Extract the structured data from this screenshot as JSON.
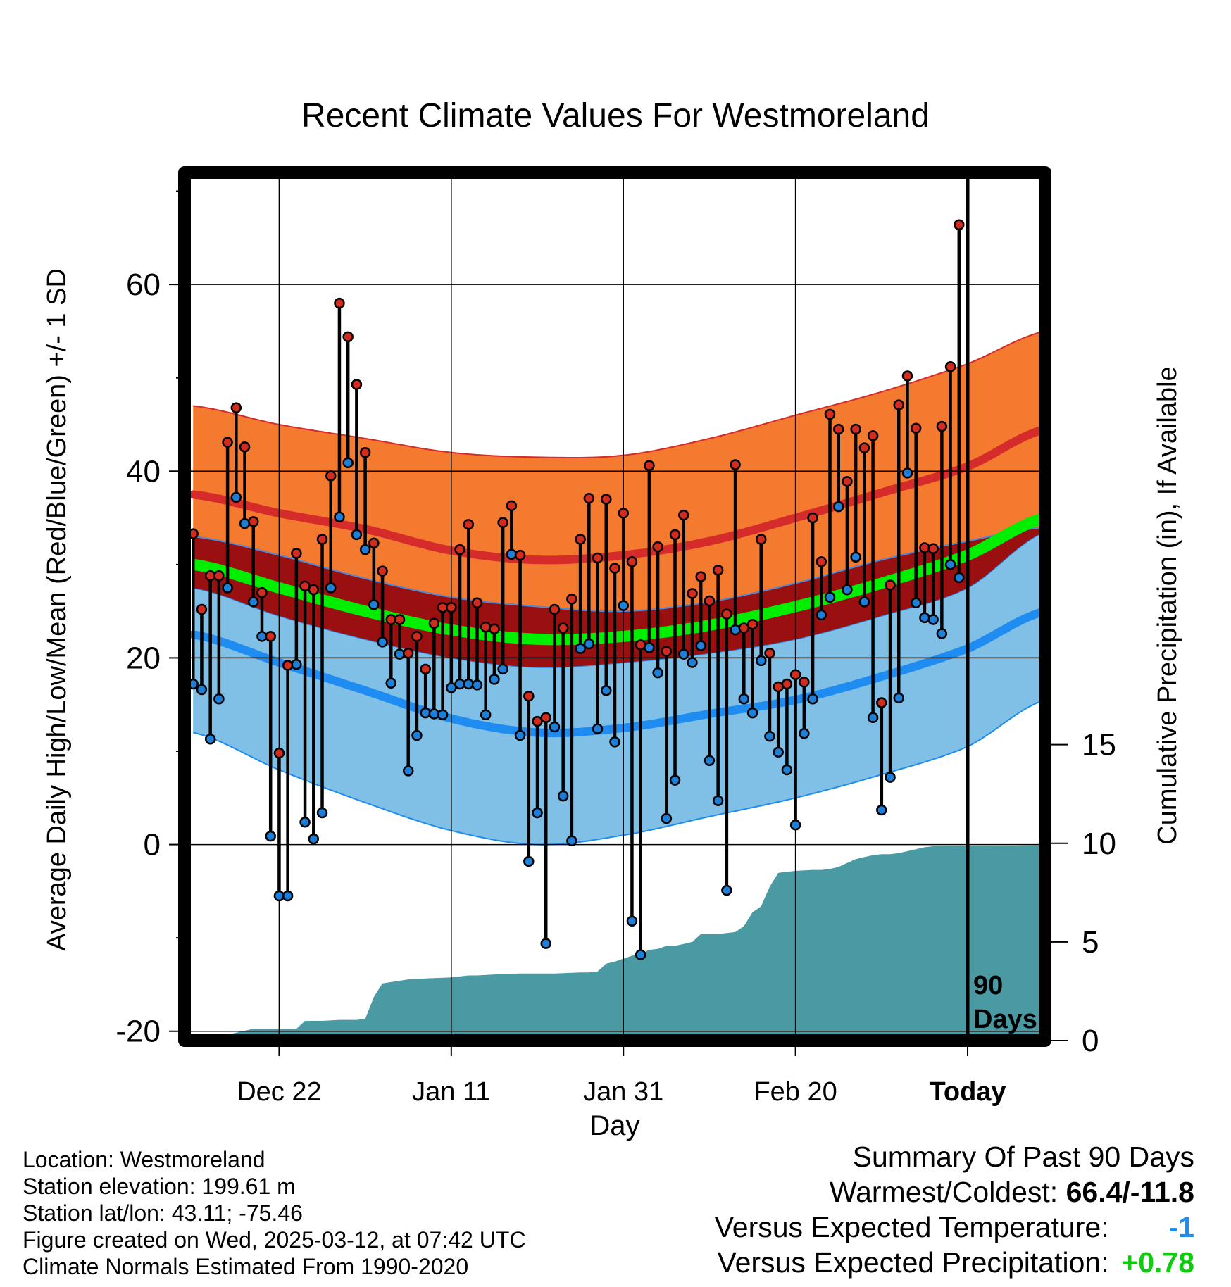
{
  "colors": {
    "high_band": "#f47a30",
    "high_line": "#d52b2b",
    "low_band": "#80c0e6",
    "low_line": "#1e8cf0",
    "mean_band": "#9a1010",
    "mean_line": "#00ee00",
    "precip_fill": "#4a9aa3",
    "high_dot": "#d42b1f",
    "low_dot": "#1e7fd8",
    "temp_anomaly": "#1e8cf0",
    "precip_anomaly": "#10cc10"
  },
  "chart_data": {
    "type": "line",
    "title": "Recent Climate Values For Westmoreland",
    "xlabel": "Day",
    "ylabel": "Average Daily High/Low/Mean (Red/Blue/Green) +/- 1 SD",
    "ylabel_right": "Cumulative Precipitation (in), If Available",
    "x_ticks": [
      "Dec 22",
      "Jan 11",
      "Jan 31",
      "Feb 20",
      "Today"
    ],
    "x_tick_days": [
      10,
      30,
      50,
      70,
      90
    ],
    "x_range_days": [
      -1,
      99
    ],
    "ylim": [
      -21,
      72
    ],
    "y_ticks": [
      -20,
      0,
      20,
      40,
      60
    ],
    "y2_ticks": [
      0,
      5,
      10,
      15
    ],
    "y2_range": [
      0,
      44
    ],
    "grid": true,
    "today_marker": "90\nDays",
    "normals_day_index": [
      0,
      10,
      20,
      30,
      40,
      50,
      60,
      70,
      80,
      90,
      99
    ],
    "normal_high": [
      37.5,
      35.5,
      33.8,
      31.5,
      30.5,
      31.0,
      32.5,
      35.0,
      37.7,
      40.5,
      44.5
    ],
    "normal_high_upper": [
      47.0,
      45.0,
      43.5,
      42.0,
      41.5,
      41.7,
      43.5,
      46.0,
      48.5,
      51.5,
      55.0
    ],
    "normal_high_lower": [
      33.0,
      31.0,
      28.5,
      26.5,
      25.5,
      25.0,
      26.0,
      28.0,
      30.5,
      32.5,
      34.0
    ],
    "normal_low": [
      22.5,
      19.5,
      16.5,
      13.5,
      12.0,
      12.5,
      14.0,
      15.5,
      18.0,
      21.0,
      25.0
    ],
    "normal_low_upper": [
      27.5,
      24.5,
      22.0,
      20.0,
      19.0,
      19.5,
      20.5,
      22.0,
      24.5,
      27.5,
      33.5
    ],
    "normal_low_lower": [
      12.0,
      8.0,
      4.5,
      1.5,
      0.0,
      1.0,
      3.0,
      5.0,
      7.5,
      10.5,
      15.5
    ],
    "normal_mean": [
      30.0,
      27.5,
      25.0,
      23.0,
      22.0,
      22.3,
      23.5,
      25.5,
      28.0,
      31.0,
      35.0
    ],
    "high": [
      33.3,
      25.2,
      28.8,
      28.8,
      43.1,
      46.8,
      42.6,
      34.6,
      27.0,
      22.3,
      9.8,
      19.2,
      31.2,
      27.7,
      27.3,
      32.7,
      39.5,
      58.0,
      54.4,
      49.3,
      42.0,
      32.3,
      29.3,
      24.1,
      24.1,
      20.5,
      22.3,
      18.8,
      23.7,
      25.4,
      25.4,
      31.6,
      34.3,
      25.9,
      23.3,
      23.1,
      34.5,
      36.3,
      31.0,
      15.9,
      13.2,
      13.6,
      25.2,
      23.2,
      26.3,
      32.7,
      37.1,
      30.7,
      37.0,
      29.6,
      35.5,
      30.3,
      21.4,
      40.6,
      31.9,
      20.7,
      33.2,
      35.3,
      26.9,
      28.7,
      26.1,
      29.4,
      24.7,
      40.7,
      23.2,
      23.6,
      32.7,
      20.5,
      16.9,
      17.2,
      18.2,
      17.4,
      35.0,
      30.3,
      46.1,
      44.5,
      38.9,
      44.5,
      42.5,
      43.8,
      15.2,
      27.8,
      47.1,
      50.2,
      44.6,
      31.8,
      31.7,
      44.8,
      51.2,
      66.4
    ],
    "low": [
      17.2,
      16.6,
      11.3,
      15.6,
      27.5,
      37.2,
      34.4,
      26.0,
      22.3,
      0.9,
      -5.5,
      -5.5,
      19.3,
      2.4,
      0.6,
      3.4,
      27.5,
      35.1,
      40.9,
      33.2,
      31.6,
      25.7,
      21.7,
      17.3,
      20.4,
      7.9,
      11.7,
      14.1,
      14.0,
      13.9,
      16.8,
      17.2,
      17.2,
      17.1,
      13.9,
      17.7,
      18.8,
      31.1,
      11.7,
      -1.8,
      3.4,
      -10.6,
      12.6,
      5.2,
      0.4,
      21.0,
      21.5,
      12.4,
      16.5,
      11.0,
      25.6,
      -8.2,
      -11.8,
      21.1,
      18.4,
      2.8,
      6.9,
      20.4,
      19.5,
      21.3,
      9.0,
      4.7,
      -4.9,
      23.0,
      15.6,
      14.1,
      19.7,
      11.6,
      9.9,
      8.0,
      2.1,
      11.9,
      15.6,
      24.6,
      26.5,
      36.2,
      27.3,
      30.8,
      26.0,
      13.6,
      3.7,
      7.2,
      15.7,
      39.8,
      25.9,
      24.3,
      24.1,
      22.6,
      30.0,
      28.6
    ],
    "precip_day_index": [
      0,
      3,
      4,
      6,
      7,
      8,
      10,
      11,
      12,
      13,
      15,
      17,
      19,
      20,
      21,
      22,
      25,
      27,
      30,
      32,
      33,
      35,
      38,
      40,
      42,
      45,
      46,
      47,
      48,
      49,
      51,
      52,
      53,
      54,
      55,
      56,
      57,
      58,
      59,
      61,
      62,
      63,
      64,
      65,
      66,
      67,
      68,
      70,
      72,
      73,
      74,
      75,
      76,
      77,
      78,
      79,
      80,
      81,
      82,
      83,
      84,
      85,
      86,
      99
    ],
    "cumulative_precip": [
      0.0,
      0.0,
      0.3,
      0.5,
      0.6,
      0.6,
      0.6,
      0.6,
      0.6,
      1.0,
      1.0,
      1.05,
      1.05,
      1.1,
      2.2,
      2.9,
      3.1,
      3.15,
      3.2,
      3.3,
      3.3,
      3.35,
      3.4,
      3.4,
      3.4,
      3.45,
      3.45,
      3.5,
      3.9,
      4.0,
      4.3,
      4.4,
      4.6,
      4.65,
      4.8,
      4.8,
      4.9,
      5.0,
      5.4,
      5.4,
      5.45,
      5.5,
      5.8,
      6.5,
      6.8,
      7.8,
      8.5,
      8.6,
      8.65,
      8.65,
      8.7,
      8.8,
      9.0,
      9.2,
      9.3,
      9.4,
      9.45,
      9.45,
      9.5,
      9.6,
      9.7,
      9.8,
      9.85,
      9.9
    ]
  },
  "info": {
    "location": "Location: Westmoreland",
    "elevation": "Station elevation: 199.61 m",
    "latlon": "Station lat/lon: 43.11; -75.46",
    "created": "Figure created on Wed, 2025-03-12, at 07:42 UTC",
    "normals": "Climate Normals Estimated From 1990-2020"
  },
  "summary": {
    "title": "Summary Of Past 90 Days",
    "warm_cold_label": "Warmest/Coldest:",
    "warm_cold_value": "66.4/-11.8",
    "temp_label": "Versus Expected Temperature:",
    "temp_value": "-1",
    "precip_label": "Versus Expected Precipitation:",
    "precip_value": "+0.78"
  }
}
